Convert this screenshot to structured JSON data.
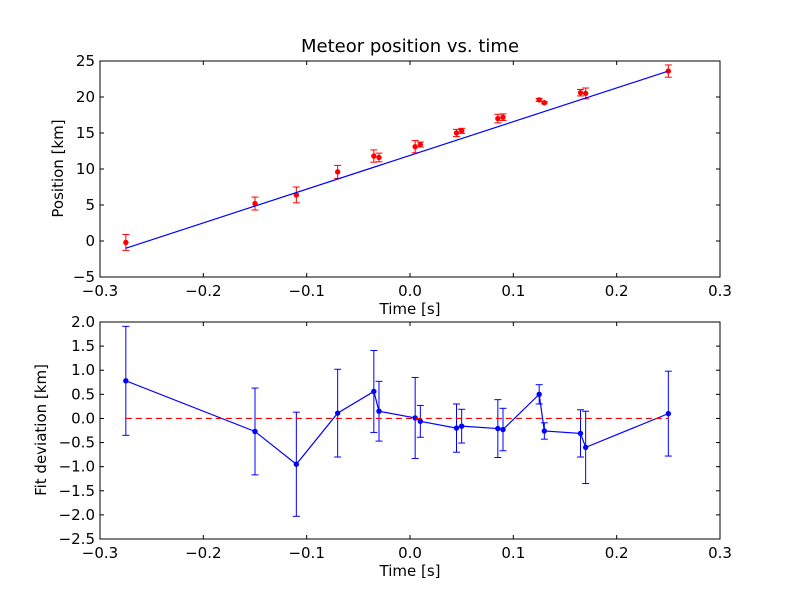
{
  "chart_data": [
    {
      "type": "scatter",
      "title": "Meteor position vs. time",
      "xlabel": "Time [s]",
      "ylabel": "Position [km]",
      "xlim": [
        -0.3,
        0.3
      ],
      "ylim": [
        -5,
        25
      ],
      "xticks": [
        -0.3,
        -0.2,
        -0.1,
        0.0,
        0.1,
        0.2,
        0.3
      ],
      "xtick_labels": [
        "−0.3",
        "−0.2",
        "−0.1",
        "0.0",
        "0.1",
        "0.2",
        "0.3"
      ],
      "yticks": [
        -5,
        0,
        5,
        10,
        15,
        20,
        25
      ],
      "ytick_labels": [
        "−5",
        "0",
        "5",
        "10",
        "15",
        "20",
        "25"
      ],
      "grid": false,
      "series": [
        {
          "kind": "errorbar-points",
          "color": "#ff0000",
          "x": [
            -0.275,
            -0.15,
            -0.11,
            -0.07,
            -0.035,
            -0.03,
            0.005,
            0.01,
            0.045,
            0.05,
            0.085,
            0.09,
            0.125,
            0.13,
            0.165,
            0.17,
            0.25
          ],
          "y": [
            -0.2,
            5.2,
            6.4,
            9.6,
            11.8,
            11.6,
            13.1,
            13.4,
            15.0,
            15.3,
            17.0,
            17.2,
            19.6,
            19.2,
            20.6,
            20.5,
            23.6
          ],
          "err": [
            1.1,
            0.9,
            1.1,
            0.9,
            0.85,
            0.6,
            0.85,
            0.35,
            0.5,
            0.35,
            0.6,
            0.45,
            0.2,
            0.15,
            0.45,
            0.75,
            0.85
          ]
        },
        {
          "kind": "fit-line",
          "color": "#0000ff",
          "x": [
            -0.275,
            0.25
          ],
          "y": [
            -1.0,
            23.6
          ]
        }
      ]
    },
    {
      "type": "line",
      "xlabel": "Time [s]",
      "ylabel": "Fit deviation [km]",
      "xlim": [
        -0.3,
        0.3
      ],
      "ylim": [
        -2.5,
        2.0
      ],
      "xticks": [
        -0.3,
        -0.2,
        -0.1,
        0.0,
        0.1,
        0.2,
        0.3
      ],
      "xtick_labels": [
        "−0.3",
        "−0.2",
        "−0.1",
        "0.0",
        "0.1",
        "0.2",
        "0.3"
      ],
      "yticks": [
        -2.5,
        -2.0,
        -1.5,
        -1.0,
        -0.5,
        0.0,
        0.5,
        1.0,
        1.5,
        2.0
      ],
      "ytick_labels": [
        "−2.5",
        "−2.0",
        "−1.5",
        "−1.0",
        "−0.5",
        "0.0",
        "0.5",
        "1.0",
        "1.5",
        "2.0"
      ],
      "grid": false,
      "series": [
        {
          "kind": "errorbar-line",
          "color": "#0000ff",
          "x": [
            -0.275,
            -0.15,
            -0.11,
            -0.07,
            -0.035,
            -0.03,
            0.005,
            0.01,
            0.045,
            0.05,
            0.085,
            0.09,
            0.125,
            0.13,
            0.165,
            0.17,
            0.25
          ],
          "y": [
            0.78,
            -0.27,
            -0.95,
            0.11,
            0.56,
            0.15,
            0.01,
            -0.06,
            -0.2,
            -0.16,
            -0.21,
            -0.23,
            0.5,
            -0.26,
            -0.31,
            -0.6,
            0.1
          ],
          "err": [
            1.13,
            0.9,
            1.08,
            0.91,
            0.85,
            0.62,
            0.84,
            0.33,
            0.5,
            0.35,
            0.6,
            0.44,
            0.2,
            0.17,
            0.49,
            0.75,
            0.88
          ]
        },
        {
          "kind": "reference-line",
          "color": "#ff0000",
          "style": "dashed",
          "x": [
            -0.275,
            0.25
          ],
          "y": [
            0,
            0
          ]
        }
      ]
    }
  ]
}
